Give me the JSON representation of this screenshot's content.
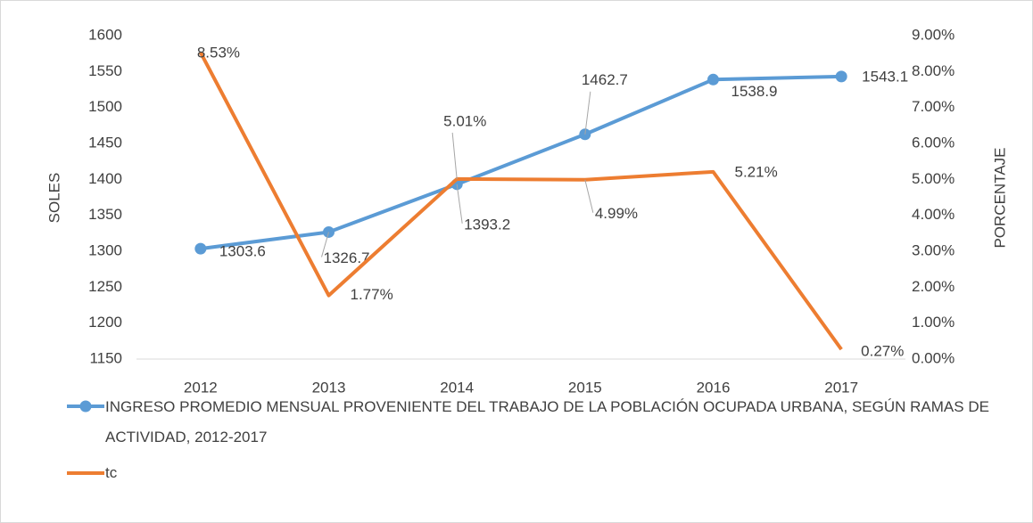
{
  "chart_data": {
    "type": "line",
    "categories": [
      "2012",
      "2013",
      "2014",
      "2015",
      "2016",
      "2017"
    ],
    "y_axis_label": "SOLES",
    "y2_axis_label": "PORCENTAJE",
    "ylim": [
      1150,
      1600
    ],
    "yticks": [
      1150,
      1200,
      1250,
      1300,
      1350,
      1400,
      1450,
      1500,
      1550,
      1600
    ],
    "y2lim": [
      0,
      9
    ],
    "y2ticks": [
      {
        "value": 0,
        "label": "0.00%"
      },
      {
        "value": 1,
        "label": "1.00%"
      },
      {
        "value": 2,
        "label": "2.00%"
      },
      {
        "value": 3,
        "label": "3.00%"
      },
      {
        "value": 4,
        "label": "4.00%"
      },
      {
        "value": 5,
        "label": "5.00%"
      },
      {
        "value": 6,
        "label": "6.00%"
      },
      {
        "value": 7,
        "label": "7.00%"
      },
      {
        "value": 8,
        "label": "8.00%"
      },
      {
        "value": 9,
        "label": "9.00%"
      }
    ],
    "grid": false,
    "legend": "bottom",
    "series": [
      {
        "name": "INGRESO PROMEDIO MENSUAL PROVENIENTE DEL  TRABAJO DE LA POBLACIÓN OCUPADA URBANA, SEGÚN  RAMAS DE ACTIVIDAD, 2012-2017",
        "color": "#5b9bd5",
        "markers": true,
        "values": [
          1303.6,
          1326.7,
          1393.2,
          1462.7,
          1538.9,
          1543.1
        ]
      },
      {
        "name": "tc",
        "color": "#ed7d31",
        "axis": "y2",
        "markers": false,
        "values": [
          8.53,
          1.77,
          5.01,
          4.99,
          5.21,
          0.27
        ],
        "value_labels": [
          "8.53%",
          "1.77%",
          "5.01%",
          "4.99%",
          "5.21%",
          "0.27%"
        ]
      }
    ]
  }
}
